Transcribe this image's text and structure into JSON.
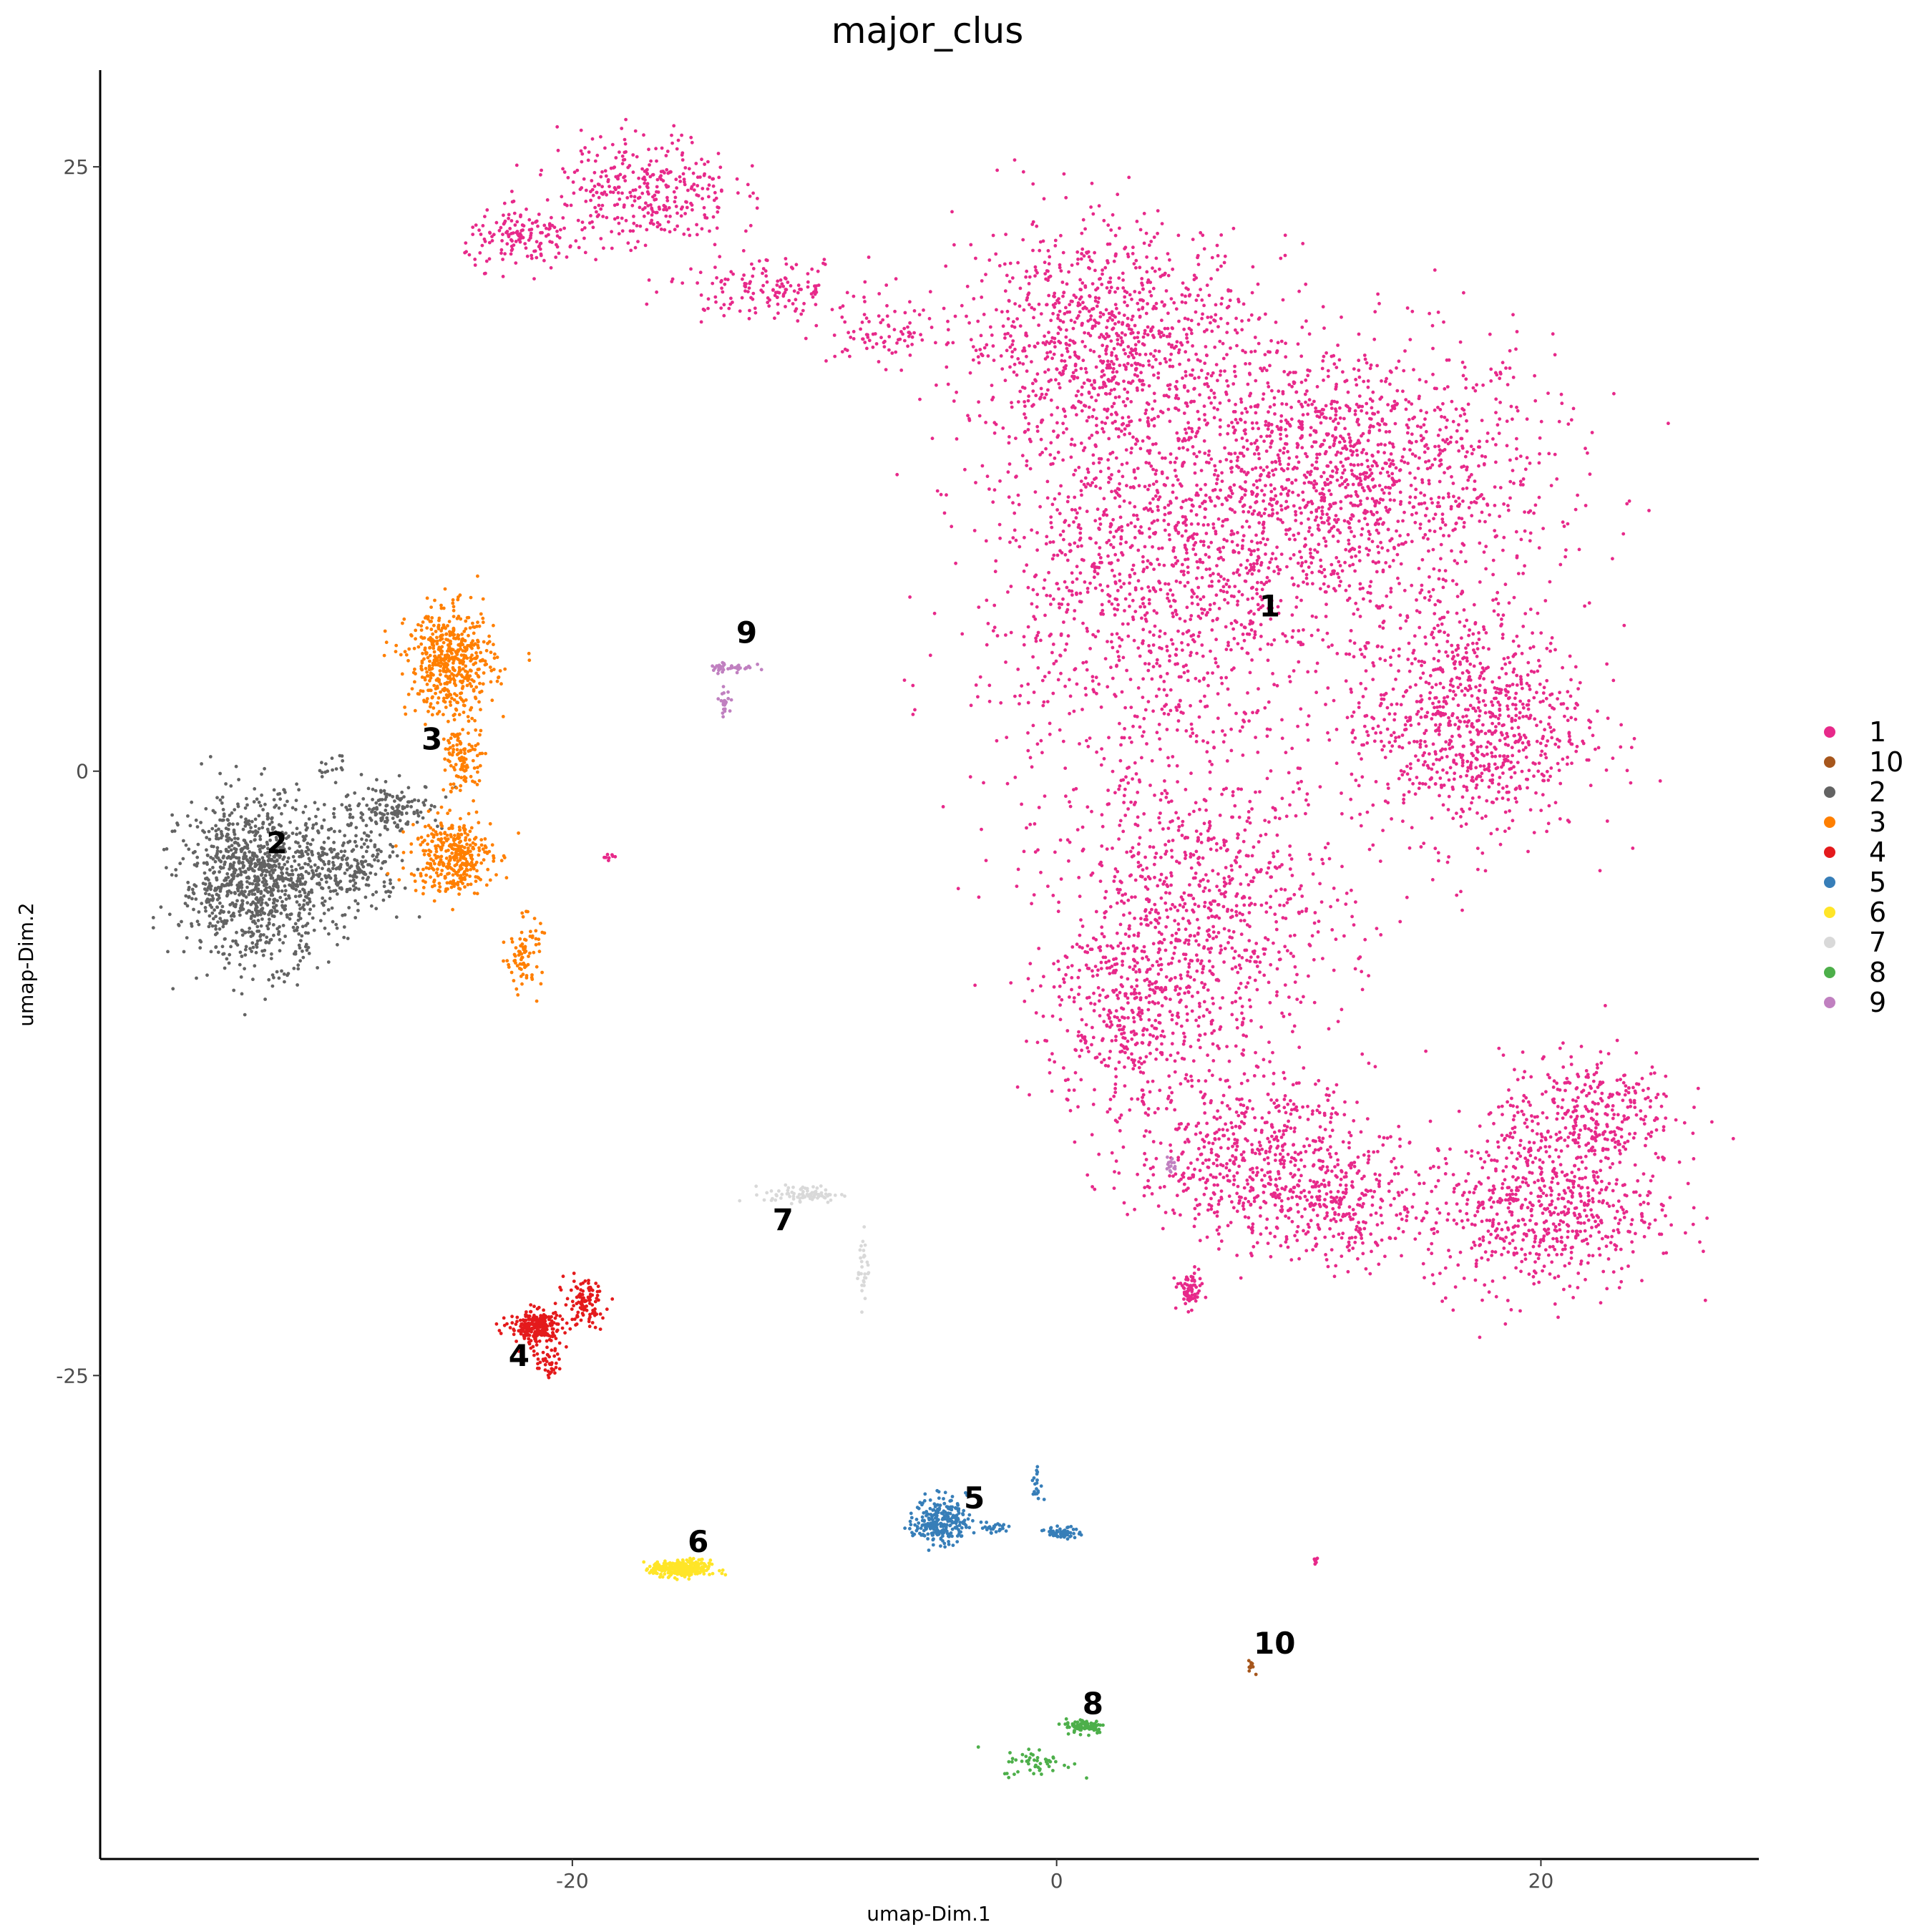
{
  "chart_data": {
    "type": "scatter",
    "title": "major_clus",
    "xlabel": "umap-Dim.1",
    "ylabel": "umap-Dim.2",
    "xlim": [
      -39.5,
      29
    ],
    "ylim": [
      -45,
      29
    ],
    "x_ticks": [
      -20,
      0,
      20
    ],
    "y_ticks": [
      -25,
      0,
      25
    ],
    "grid": false,
    "legend_position": "right",
    "series": [
      {
        "name": "1",
        "color": "#E7298A",
        "label_pos": [
          8.8,
          6.4
        ],
        "blobs": [
          [
            12,
            12,
            7,
            5,
            1500
          ],
          [
            17,
            2,
            4,
            4,
            900
          ],
          [
            4,
            8,
            6,
            8,
            1300
          ],
          [
            2,
            18,
            5,
            4,
            900
          ],
          [
            6,
            -6,
            5,
            5,
            800
          ],
          [
            3,
            -10,
            3,
            4,
            400
          ],
          [
            8,
            -16,
            4,
            3,
            600
          ],
          [
            12,
            -18,
            3,
            2,
            250
          ],
          [
            20,
            -18,
            4,
            3,
            700
          ],
          [
            22,
            -14,
            3,
            2,
            300
          ],
          [
            -17,
            24,
            3,
            2,
            350
          ],
          [
            -22,
            22,
            2,
            1,
            150
          ],
          [
            -12,
            20,
            3,
            1,
            150
          ],
          [
            -7,
            18,
            2,
            1,
            80
          ],
          [
            5.5,
            -21.5,
            0.4,
            0.6,
            70
          ],
          [
            -18.5,
            -3.6,
            0.2,
            0.2,
            8
          ],
          [
            10.7,
            -32.6,
            0.1,
            0.2,
            8
          ]
        ]
      },
      {
        "name": "10",
        "color": "#A6561C",
        "label_pos": [
          9.0,
          -36.5
        ],
        "blobs": [
          [
            8.0,
            -37.0,
            0.15,
            0.2,
            10
          ]
        ]
      },
      {
        "name": "2",
        "color": "#636363",
        "label_pos": [
          -32.2,
          -3.4
        ],
        "blobs": [
          [
            -33,
            -4.5,
            2.6,
            2.8,
            1100
          ],
          [
            -27.5,
            -1.5,
            1.8,
            0.8,
            150
          ],
          [
            -29,
            -4,
            1.6,
            1.4,
            200
          ],
          [
            -30,
            0.2,
            0.5,
            0.4,
            15
          ]
        ]
      },
      {
        "name": "3",
        "color": "#FF7F00",
        "label_pos": [
          -25.8,
          0.9
        ],
        "blobs": [
          [
            -25,
            4.5,
            1.5,
            1.8,
            500
          ],
          [
            -25,
            -3.5,
            1.4,
            1.3,
            350
          ],
          [
            -24.5,
            0.5,
            0.6,
            1.5,
            120
          ],
          [
            -22,
            -7.5,
            0.6,
            1.2,
            80
          ]
        ]
      },
      {
        "name": "4",
        "color": "#E41A1C",
        "label_pos": [
          -22.2,
          -24.6
        ],
        "blobs": [
          [
            -21.5,
            -23,
            0.9,
            0.6,
            250
          ],
          [
            -19.5,
            -22,
            0.7,
            0.8,
            100
          ],
          [
            -21,
            -24.5,
            0.4,
            0.5,
            40
          ]
        ]
      },
      {
        "name": "5",
        "color": "#377EB8",
        "label_pos": [
          -3.4,
          -30.5
        ],
        "blobs": [
          [
            -4.8,
            -31,
            0.9,
            0.8,
            250
          ],
          [
            0.3,
            -31.5,
            0.6,
            0.2,
            60
          ],
          [
            -0.8,
            -29.5,
            0.2,
            0.6,
            20
          ],
          [
            -2.5,
            -31.3,
            0.7,
            0.2,
            30
          ]
        ]
      },
      {
        "name": "6",
        "color": "#FFE528",
        "label_pos": [
          -14.8,
          -32.3
        ],
        "blobs": [
          [
            -15.5,
            -33,
            1.0,
            0.3,
            300
          ]
        ]
      },
      {
        "name": "7",
        "color": "#D9D9D9",
        "label_pos": [
          -11.3,
          -19.0
        ],
        "blobs": [
          [
            -10.5,
            -17.5,
            1.3,
            0.3,
            80
          ],
          [
            -8.0,
            -20.5,
            0.2,
            1.3,
            30
          ]
        ]
      },
      {
        "name": "8",
        "color": "#4DAF4A",
        "label_pos": [
          1.5,
          -39.0
        ],
        "blobs": [
          [
            1.2,
            -39.5,
            0.7,
            0.25,
            90
          ],
          [
            -0.8,
            -41.0,
            1.2,
            0.5,
            50
          ]
        ]
      },
      {
        "name": "9",
        "color": "#C080C0",
        "label_pos": [
          -12.8,
          5.3
        ],
        "blobs": [
          [
            -13.5,
            4.3,
            0.8,
            0.2,
            40
          ],
          [
            -13.7,
            2.9,
            0.2,
            0.4,
            25
          ],
          [
            4.7,
            -16.3,
            0.2,
            0.3,
            15
          ]
        ]
      }
    ],
    "legend_order": [
      "1",
      "10",
      "2",
      "3",
      "4",
      "5",
      "6",
      "7",
      "8",
      "9"
    ]
  }
}
